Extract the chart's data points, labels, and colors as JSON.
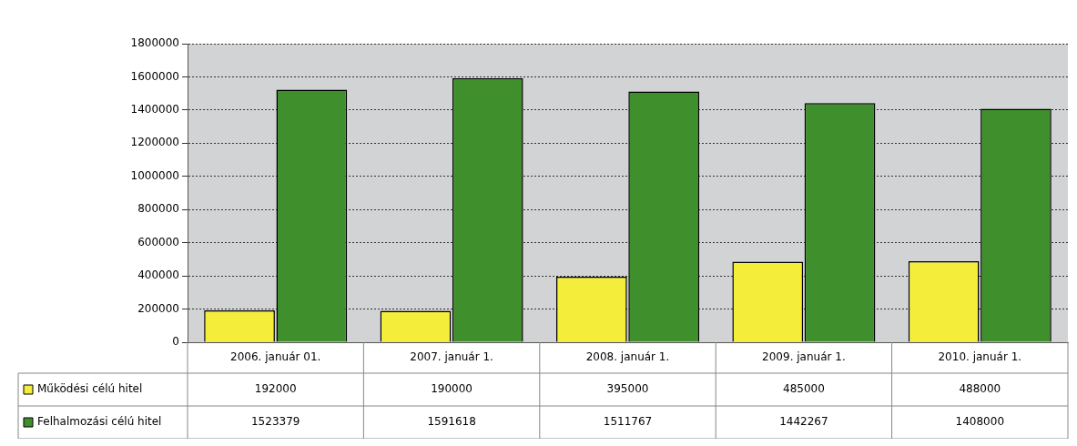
{
  "chart_data": {
    "type": "bar",
    "categories": [
      "2006. január 01.",
      "2007. január 1.",
      "2008. január 1.",
      "2009. január 1.",
      "2010. január 1."
    ],
    "series": [
      {
        "name": "Működési célú hitel",
        "color": "#f4ee3a",
        "values": [
          192000,
          190000,
          395000,
          485000,
          488000
        ]
      },
      {
        "name": "Felhalmozási célú hitel",
        "color": "#3f8f2c",
        "values": [
          1523379,
          1591618,
          1511767,
          1442267,
          1408000
        ]
      }
    ],
    "ylim": [
      0,
      1800000
    ],
    "yticks": [
      0,
      200000,
      400000,
      600000,
      800000,
      1000000,
      1200000,
      1400000,
      1600000,
      1800000
    ],
    "grid": "y",
    "legend": "bottom left",
    "data_labels": true
  }
}
